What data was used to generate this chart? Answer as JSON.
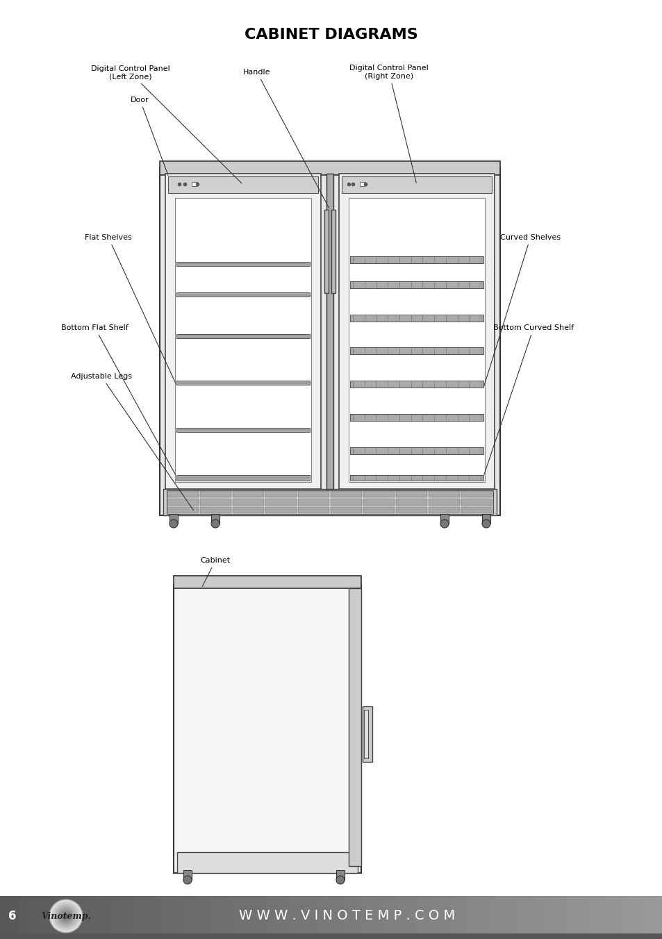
{
  "title": "CABINET DIAGRAMS",
  "title_fontsize": 16,
  "bg_color": "#ffffff",
  "footer_text": "W W W . V I N O T E M P . C O M",
  "footer_page": "6",
  "labels_front": {
    "digital_left": "Digital Control Panel\n(Left Zone)",
    "handle": "Handle",
    "digital_right": "Digital Control Panel\n(Right Zone)",
    "door": "Door",
    "flat_shelves": "Flat Shelves",
    "bottom_flat": "Bottom Flat Shelf",
    "adjustable_legs": "Adjustable Legs",
    "curved_shelves": "Curved Shelves",
    "bottom_curved": "Bottom Curved Shelf"
  },
  "label_side": "Cabinet"
}
